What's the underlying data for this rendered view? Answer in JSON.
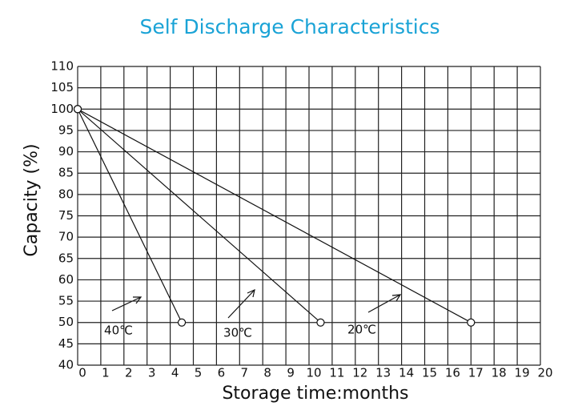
{
  "chart_data": {
    "type": "line",
    "title": "Self Discharge Characteristics",
    "xlabel": "Storage time:months",
    "ylabel": "Capacity (%)",
    "xlim": [
      0,
      20
    ],
    "xticks": [
      0,
      1,
      2,
      3,
      4,
      5,
      6,
      7,
      8,
      9,
      10,
      11,
      12,
      13,
      14,
      15,
      16,
      17,
      18,
      19,
      20
    ],
    "ylim": [
      40,
      110
    ],
    "yticks": [
      40,
      45,
      50,
      55,
      60,
      65,
      70,
      75,
      80,
      85,
      90,
      95,
      100,
      105,
      110
    ],
    "grid": true,
    "series": [
      {
        "name": "40℃",
        "color": "#111111",
        "x": [
          0,
          4.5
        ],
        "values": [
          100,
          50
        ]
      },
      {
        "name": "30℃",
        "color": "#111111",
        "x": [
          0,
          10.5
        ],
        "values": [
          100,
          50
        ]
      },
      {
        "name": "20℃",
        "color": "#111111",
        "x": [
          0,
          17
        ],
        "values": [
          100,
          50
        ]
      }
    ]
  }
}
